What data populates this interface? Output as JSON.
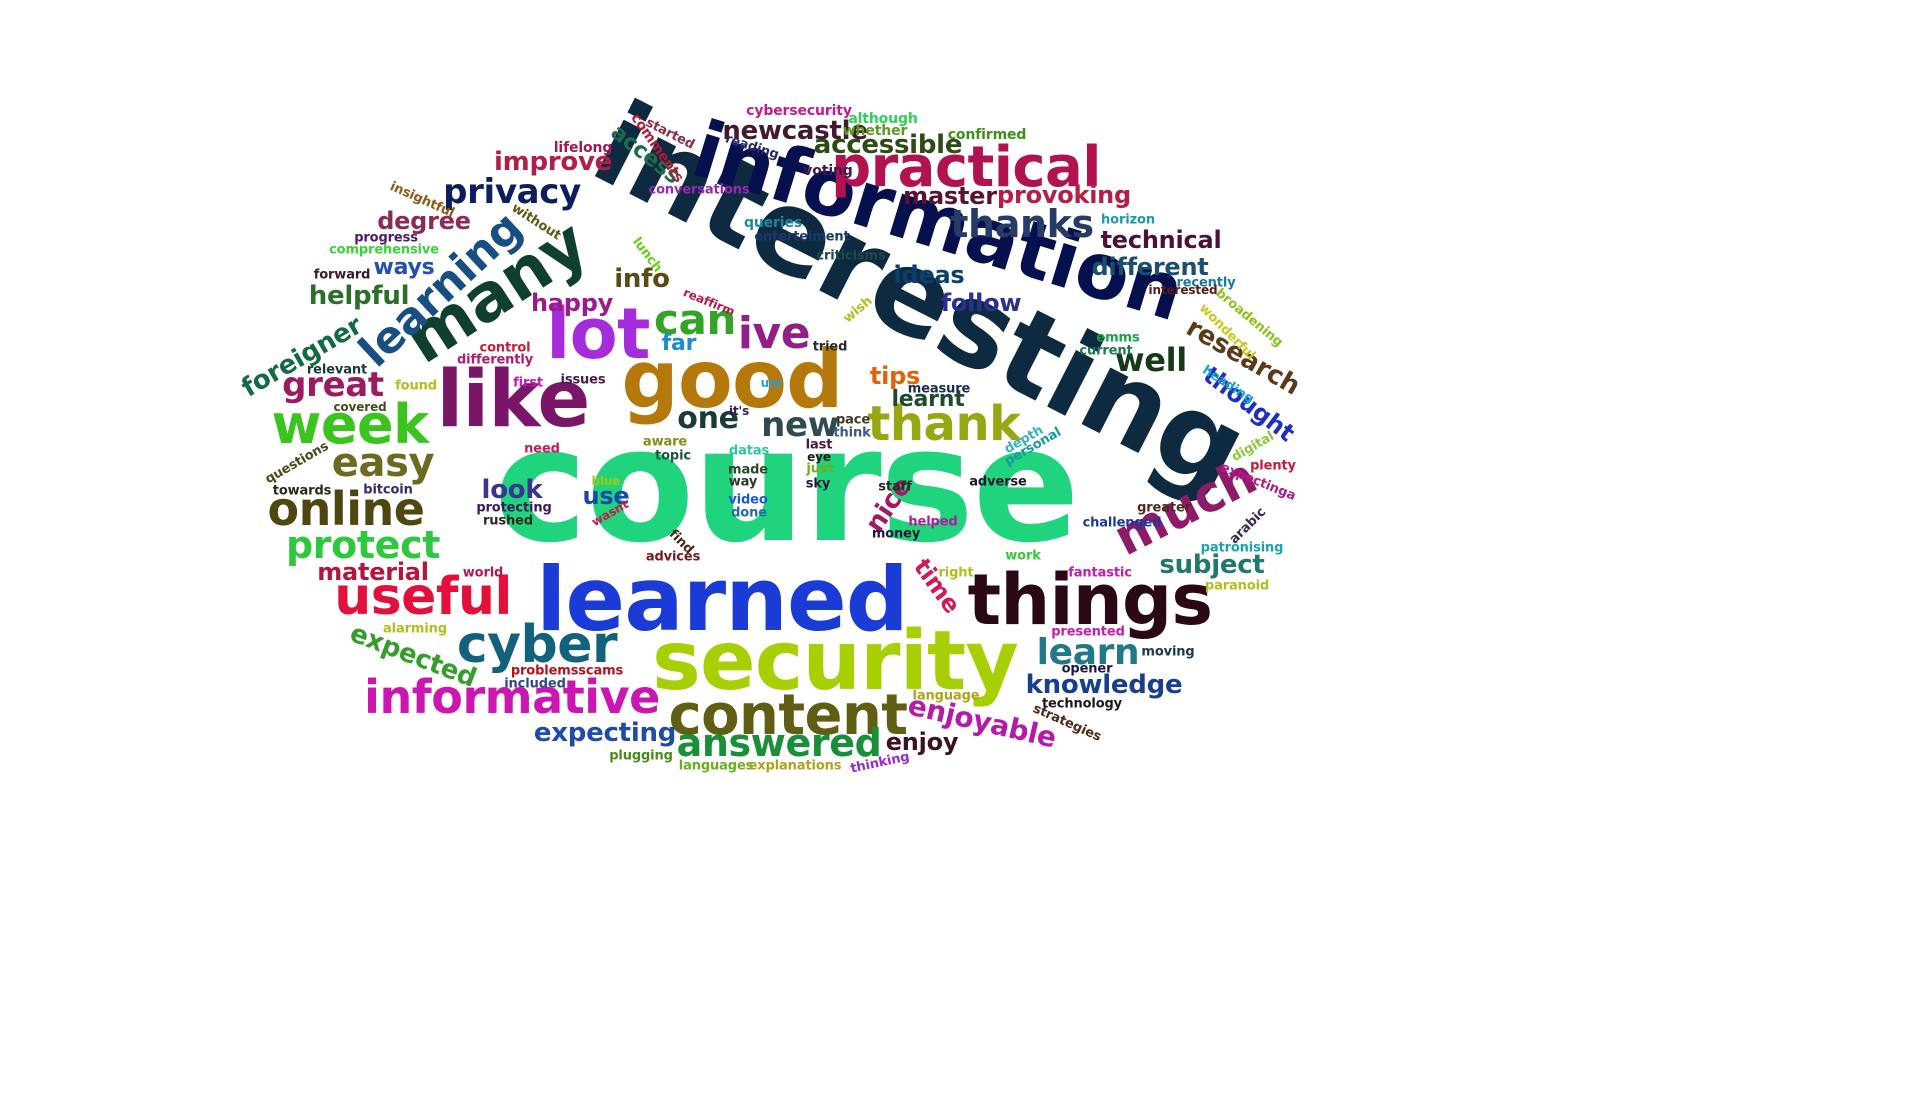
{
  "title": "",
  "words": [
    {
      "text": "course",
      "color": "#1fd47c"
    },
    {
      "text": "interesting",
      "color": "#0e2a40"
    },
    {
      "text": "information",
      "color": "#06104f"
    },
    {
      "text": "learned",
      "color": "#1a3bd6"
    },
    {
      "text": "security",
      "color": "#a8cf04"
    },
    {
      "text": "things",
      "color": "#2b0816"
    },
    {
      "text": "good",
      "color": "#b5780b"
    },
    {
      "text": "like",
      "color": "#7a1667"
    },
    {
      "text": "lot",
      "color": "#a52bdb"
    },
    {
      "text": "many",
      "color": "#0f3f2f"
    },
    {
      "text": "practical",
      "color": "#b0134f"
    },
    {
      "text": "content",
      "color": "#5f5e12"
    },
    {
      "text": "useful",
      "color": "#e3103b"
    },
    {
      "text": "informative",
      "color": "#cc16b2"
    },
    {
      "text": "cyber",
      "color": "#13617d"
    },
    {
      "text": "much",
      "color": "#901a6a"
    },
    {
      "text": "week",
      "color": "#3bc41f"
    },
    {
      "text": "thank",
      "color": "#97a713"
    },
    {
      "text": "online",
      "color": "#4e470f"
    },
    {
      "text": "learning",
      "color": "#184f82"
    },
    {
      "text": "answered",
      "color": "#1a8f3a"
    },
    {
      "text": "protect",
      "color": "#2ec83f"
    },
    {
      "text": "easy",
      "color": "#6b6a20"
    },
    {
      "text": "privacy",
      "color": "#0c1f5c"
    },
    {
      "text": "thanks",
      "color": "#263b68"
    },
    {
      "text": "ive",
      "color": "#921f85"
    },
    {
      "text": "can",
      "color": "#33a526"
    },
    {
      "text": "great",
      "color": "#9c1a60"
    },
    {
      "text": "learn",
      "color": "#1f7a86"
    },
    {
      "text": "new",
      "color": "#314a50"
    },
    {
      "text": "one",
      "color": "#1a3a38"
    },
    {
      "text": "well",
      "color": "#173b18"
    },
    {
      "text": "knowledge",
      "color": "#173e8f"
    },
    {
      "text": "expecting",
      "color": "#1f4bab"
    },
    {
      "text": "enjoyable",
      "color": "#b51aa8"
    },
    {
      "text": "newcastle",
      "color": "#421a2e"
    },
    {
      "text": "research",
      "color": "#5b3a1a"
    },
    {
      "text": "subject",
      "color": "#217870"
    },
    {
      "text": "material",
      "color": "#b4153e"
    },
    {
      "text": "improve",
      "color": "#b21e4a"
    },
    {
      "text": "technical",
      "color": "#4a1236"
    },
    {
      "text": "different",
      "color": "#1b4f6e"
    },
    {
      "text": "provoking",
      "color": "#b81e44"
    },
    {
      "text": "master",
      "color": "#5a1233"
    },
    {
      "text": "accessible",
      "color": "#2f4a12"
    },
    {
      "text": "degree",
      "color": "#8c2a55"
    },
    {
      "text": "helpful",
      "color": "#2c6f2c"
    },
    {
      "text": "foreigner",
      "color": "#136a43"
    },
    {
      "text": "expected",
      "color": "#339e2a"
    },
    {
      "text": "thought",
      "color": "#1e2ec4"
    },
    {
      "text": "follow",
      "color": "#2b2f94"
    },
    {
      "text": "ideas",
      "color": "#0d3f6e"
    },
    {
      "text": "happy",
      "color": "#9b1b8f"
    },
    {
      "text": "info",
      "color": "#5c4a14"
    },
    {
      "text": "look",
      "color": "#3b3490"
    },
    {
      "text": "nice",
      "color": "#a31763"
    },
    {
      "text": "enjoy",
      "color": "#3b1320"
    },
    {
      "text": "use",
      "color": "#1948a6"
    },
    {
      "text": "time",
      "color": "#d1195c"
    },
    {
      "text": "tips",
      "color": "#e3620a"
    },
    {
      "text": "learnt",
      "color": "#1e4a2e"
    },
    {
      "text": "far",
      "color": "#1e8ccc"
    },
    {
      "text": "access",
      "color": "#1c6d50"
    },
    {
      "text": "ways",
      "color": "#224fb0"
    },
    {
      "text": "cybersecurity",
      "color": "#c41a8c"
    },
    {
      "text": "although",
      "color": "#2fcf5a"
    },
    {
      "text": "whether",
      "color": "#5a9a22"
    },
    {
      "text": "confirmed",
      "color": "#3d8f1a"
    },
    {
      "text": "started",
      "color": "#8c2a4a"
    },
    {
      "text": "comments",
      "color": "#b51a33"
    },
    {
      "text": "reading",
      "color": "#2a2a6a"
    },
    {
      "text": "lifelong",
      "color": "#9c1a55"
    },
    {
      "text": "conversations",
      "color": "#9a27b8"
    },
    {
      "text": "voting",
      "color": "#3a1a4a"
    },
    {
      "text": "insightful",
      "color": "#8f5a14"
    },
    {
      "text": "without",
      "color": "#5a5a12"
    },
    {
      "text": "queries",
      "color": "#1a8a9a"
    },
    {
      "text": "horizon",
      "color": "#1a9aa2"
    },
    {
      "text": "progress",
      "color": "#4a1a6a"
    },
    {
      "text": "enterteiment",
      "color": "#1a3a6a"
    },
    {
      "text": "comprehensive",
      "color": "#3ad03a"
    },
    {
      "text": "lunch",
      "color": "#6ad01a"
    },
    {
      "text": "criticisms",
      "color": "#1a4a4a"
    },
    {
      "text": "recently",
      "color": "#1a7a9a"
    },
    {
      "text": "forward",
      "color": "#3a1a2a"
    },
    {
      "text": "interested",
      "color": "#5a1a1a"
    },
    {
      "text": "broadening",
      "color": "#8ac21a"
    },
    {
      "text": "reaffirm",
      "color": "#b21a4a"
    },
    {
      "text": "wish",
      "color": "#b0c01a"
    },
    {
      "text": "wonderful",
      "color": "#c8c81a"
    },
    {
      "text": "emms",
      "color": "#1aa24a"
    },
    {
      "text": "tried",
      "color": "#2a2a2a"
    },
    {
      "text": "current",
      "color": "#1a7a4a"
    },
    {
      "text": "heading",
      "color": "#1aa2c8"
    },
    {
      "text": "control",
      "color": "#c81a3a"
    },
    {
      "text": "differently",
      "color": "#b01a73"
    },
    {
      "text": "relevant",
      "color": "#1a3a3a"
    },
    {
      "text": "first",
      "color": "#c81ab0"
    },
    {
      "text": "issues",
      "color": "#4a1a4a"
    },
    {
      "text": "uni",
      "color": "#1aa2e3"
    },
    {
      "text": "found",
      "color": "#b0c01a"
    },
    {
      "text": "measure",
      "color": "#1a2a5a"
    },
    {
      "text": "covered",
      "color": "#4a4a1a"
    },
    {
      "text": "it's",
      "color": "#3a1a5a"
    },
    {
      "text": "pace",
      "color": "#3a3a2a"
    },
    {
      "text": "last",
      "color": "#4a1a3a"
    },
    {
      "text": "think",
      "color": "#3a5a8a"
    },
    {
      "text": "personal",
      "color": "#1a9a9a"
    },
    {
      "text": "depth",
      "color": "#3ab0c8"
    },
    {
      "text": "digital",
      "color": "#8ac83a"
    },
    {
      "text": "aware",
      "color": "#8a8a1a"
    },
    {
      "text": "datas",
      "color": "#2ac8a2"
    },
    {
      "text": "eye",
      "color": "#1a1a1a"
    },
    {
      "text": "questions",
      "color": "#4a4a1a"
    },
    {
      "text": "need",
      "color": "#c81a5a"
    },
    {
      "text": "topic",
      "color": "#1a5a3a"
    },
    {
      "text": "made",
      "color": "#2a4a2a"
    },
    {
      "text": "just",
      "color": "#6ab01a"
    },
    {
      "text": "way",
      "color": "#2a3a2a"
    },
    {
      "text": "sky",
      "color": "#1a1a3a"
    },
    {
      "text": "plenty",
      "color": "#c81a3a"
    },
    {
      "text": "expectinga",
      "color": "#b01a8a"
    },
    {
      "text": "towards",
      "color": "#2a2a1a"
    },
    {
      "text": "bitcoin",
      "color": "#3a2a6a"
    },
    {
      "text": "blue",
      "color": "#a2c81a"
    },
    {
      "text": "staff",
      "color": "#2a2a2a"
    },
    {
      "text": "adverse",
      "color": "#1a1a2a"
    },
    {
      "text": "protecting",
      "color": "#3a1a5a"
    },
    {
      "text": "video",
      "color": "#1a5ad0"
    },
    {
      "text": "greater",
      "color": "#4a2a1a"
    },
    {
      "text": "rushed",
      "color": "#2a2a1a"
    },
    {
      "text": "wasnt",
      "color": "#c81a4a"
    },
    {
      "text": "done",
      "color": "#1a6ab0"
    },
    {
      "text": "helped",
      "color": "#b01aa2"
    },
    {
      "text": "challenged",
      "color": "#1a3a9a"
    },
    {
      "text": "arabic",
      "color": "#3a2a4a"
    },
    {
      "text": "find",
      "color": "#4a2a1a"
    },
    {
      "text": "money",
      "color": "#1a1a3a"
    },
    {
      "text": "patronising",
      "color": "#1aa2b0"
    },
    {
      "text": "advices",
      "color": "#7a1a1a"
    },
    {
      "text": "work",
      "color": "#3ac83a"
    },
    {
      "text": "right",
      "color": "#b0c01a"
    },
    {
      "text": "paranoid",
      "color": "#b0c01a"
    },
    {
      "text": "world",
      "color": "#b01a5a"
    },
    {
      "text": "fantastic",
      "color": "#c81ab0"
    },
    {
      "text": "alarming",
      "color": "#b0c01a"
    },
    {
      "text": "presented",
      "color": "#c81ab0"
    },
    {
      "text": "moving",
      "color": "#1a3a4a"
    },
    {
      "text": "problemsscams",
      "color": "#b0141e"
    },
    {
      "text": "opener",
      "color": "#1a1a4a"
    },
    {
      "text": "included",
      "color": "#2a4a8a"
    },
    {
      "text": "language",
      "color": "#b0a21a"
    },
    {
      "text": "technology",
      "color": "#1a1a1a"
    },
    {
      "text": "strategies",
      "color": "#4a2a1a"
    },
    {
      "text": "plugging",
      "color": "#4a8a1a"
    },
    {
      "text": "languages",
      "color": "#6ab01a"
    },
    {
      "text": "explanations",
      "color": "#b0a21a"
    },
    {
      "text": "thinking",
      "color": "#9a2ad0"
    }
  ]
}
